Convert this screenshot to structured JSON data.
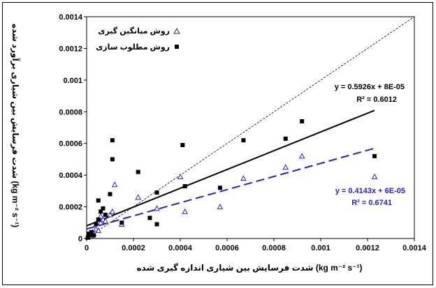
{
  "chart_data": {
    "type": "scatter",
    "xlabel": "شدت فرسایش بین شیاری اندازه گیری شده (kg m⁻² s⁻¹)",
    "ylabel": "شدت فرسایش بین شیاری برآورد شده (kg m⁻² s⁻¹)",
    "xlim": [
      0,
      0.0014
    ],
    "ylim": [
      0,
      0.0014
    ],
    "xticks": [
      "0",
      "0.0002",
      "0.0004",
      "0.0006",
      "0.0008",
      "0.001",
      "0.0012",
      "0.0014"
    ],
    "yticks": [
      "0",
      "0.0002",
      "0.0004",
      "0.0006",
      "0.0008",
      "0.001",
      "0.0012",
      "0.0014"
    ],
    "legend_position": "top-left",
    "series": [
      {
        "name": "روش میانگین گیری",
        "marker": "open-triangle",
        "color": "#1f1fd6",
        "points": [
          [
            5e-06,
            1e-05
          ],
          [
            1e-05,
            2e-05
          ],
          [
            1.5e-05,
            3e-05
          ],
          [
            2e-05,
            1.5e-05
          ],
          [
            2.5e-05,
            4e-05
          ],
          [
            3e-05,
            3e-05
          ],
          [
            4e-05,
            6e-05
          ],
          [
            5e-05,
            5e-05
          ],
          [
            6e-05,
            0.0001
          ],
          [
            6e-05,
            0.00014
          ],
          [
            7e-05,
            0.00012
          ],
          [
            8e-05,
            0.00011
          ],
          [
            0.0001,
            0.00015
          ],
          [
            0.00011,
            0.00017
          ],
          [
            0.00012,
            0.00034
          ],
          [
            0.00015,
            9e-05
          ],
          [
            0.00022,
            0.00026
          ],
          [
            0.0003,
            0.00019
          ],
          [
            0.0004,
            0.00039
          ],
          [
            0.00042,
            0.00017
          ],
          [
            0.00057,
            0.0002
          ],
          [
            0.00067,
            0.00038
          ],
          [
            0.00085,
            0.00045
          ],
          [
            0.00092,
            0.00052
          ],
          [
            0.00123,
            0.00039
          ]
        ],
        "trendline": {
          "slope": 0.4143,
          "intercept": 6e-05,
          "style": "dashed",
          "equation": "y = 0.4143x + 6E-05",
          "r2": "R² = 0.6741"
        }
      },
      {
        "name": "روش مطلوب سازی",
        "marker": "filled-square",
        "color": "#000000",
        "points": [
          [
            5e-06,
            5e-06
          ],
          [
            1e-05,
            3e-05
          ],
          [
            1.5e-05,
            2e-05
          ],
          [
            2e-05,
            4e-05
          ],
          [
            3e-05,
            2e-05
          ],
          [
            4e-05,
            9e-05
          ],
          [
            5e-05,
            0.00012
          ],
          [
            5e-05,
            0.00024
          ],
          [
            6e-05,
            0.00017
          ],
          [
            7e-05,
            0.00019
          ],
          [
            8e-05,
            0.00015
          ],
          [
            0.0001,
            0.00028
          ],
          [
            0.00011,
            0.00062
          ],
          [
            0.00011,
            0.0005
          ],
          [
            0.00015,
            0.0001
          ],
          [
            0.00022,
            0.00042
          ],
          [
            0.00027,
            0.00013
          ],
          [
            0.0003,
            0.00029
          ],
          [
            0.0003,
            9e-05
          ],
          [
            0.00041,
            0.00059
          ],
          [
            0.00042,
            0.00033
          ],
          [
            0.00057,
            0.00032
          ],
          [
            0.00067,
            0.00062
          ],
          [
            0.00085,
            0.00063
          ],
          [
            0.00092,
            0.00074
          ],
          [
            0.00123,
            0.00052
          ]
        ],
        "trendline": {
          "slope": 0.5926,
          "intercept": 8e-05,
          "style": "solid",
          "equation": "y = 0.5926x + 8E-05",
          "r2": "R² = 0.6012"
        }
      }
    ],
    "reference_line": {
      "slope": 1,
      "intercept": 0,
      "style": "dotted"
    }
  }
}
